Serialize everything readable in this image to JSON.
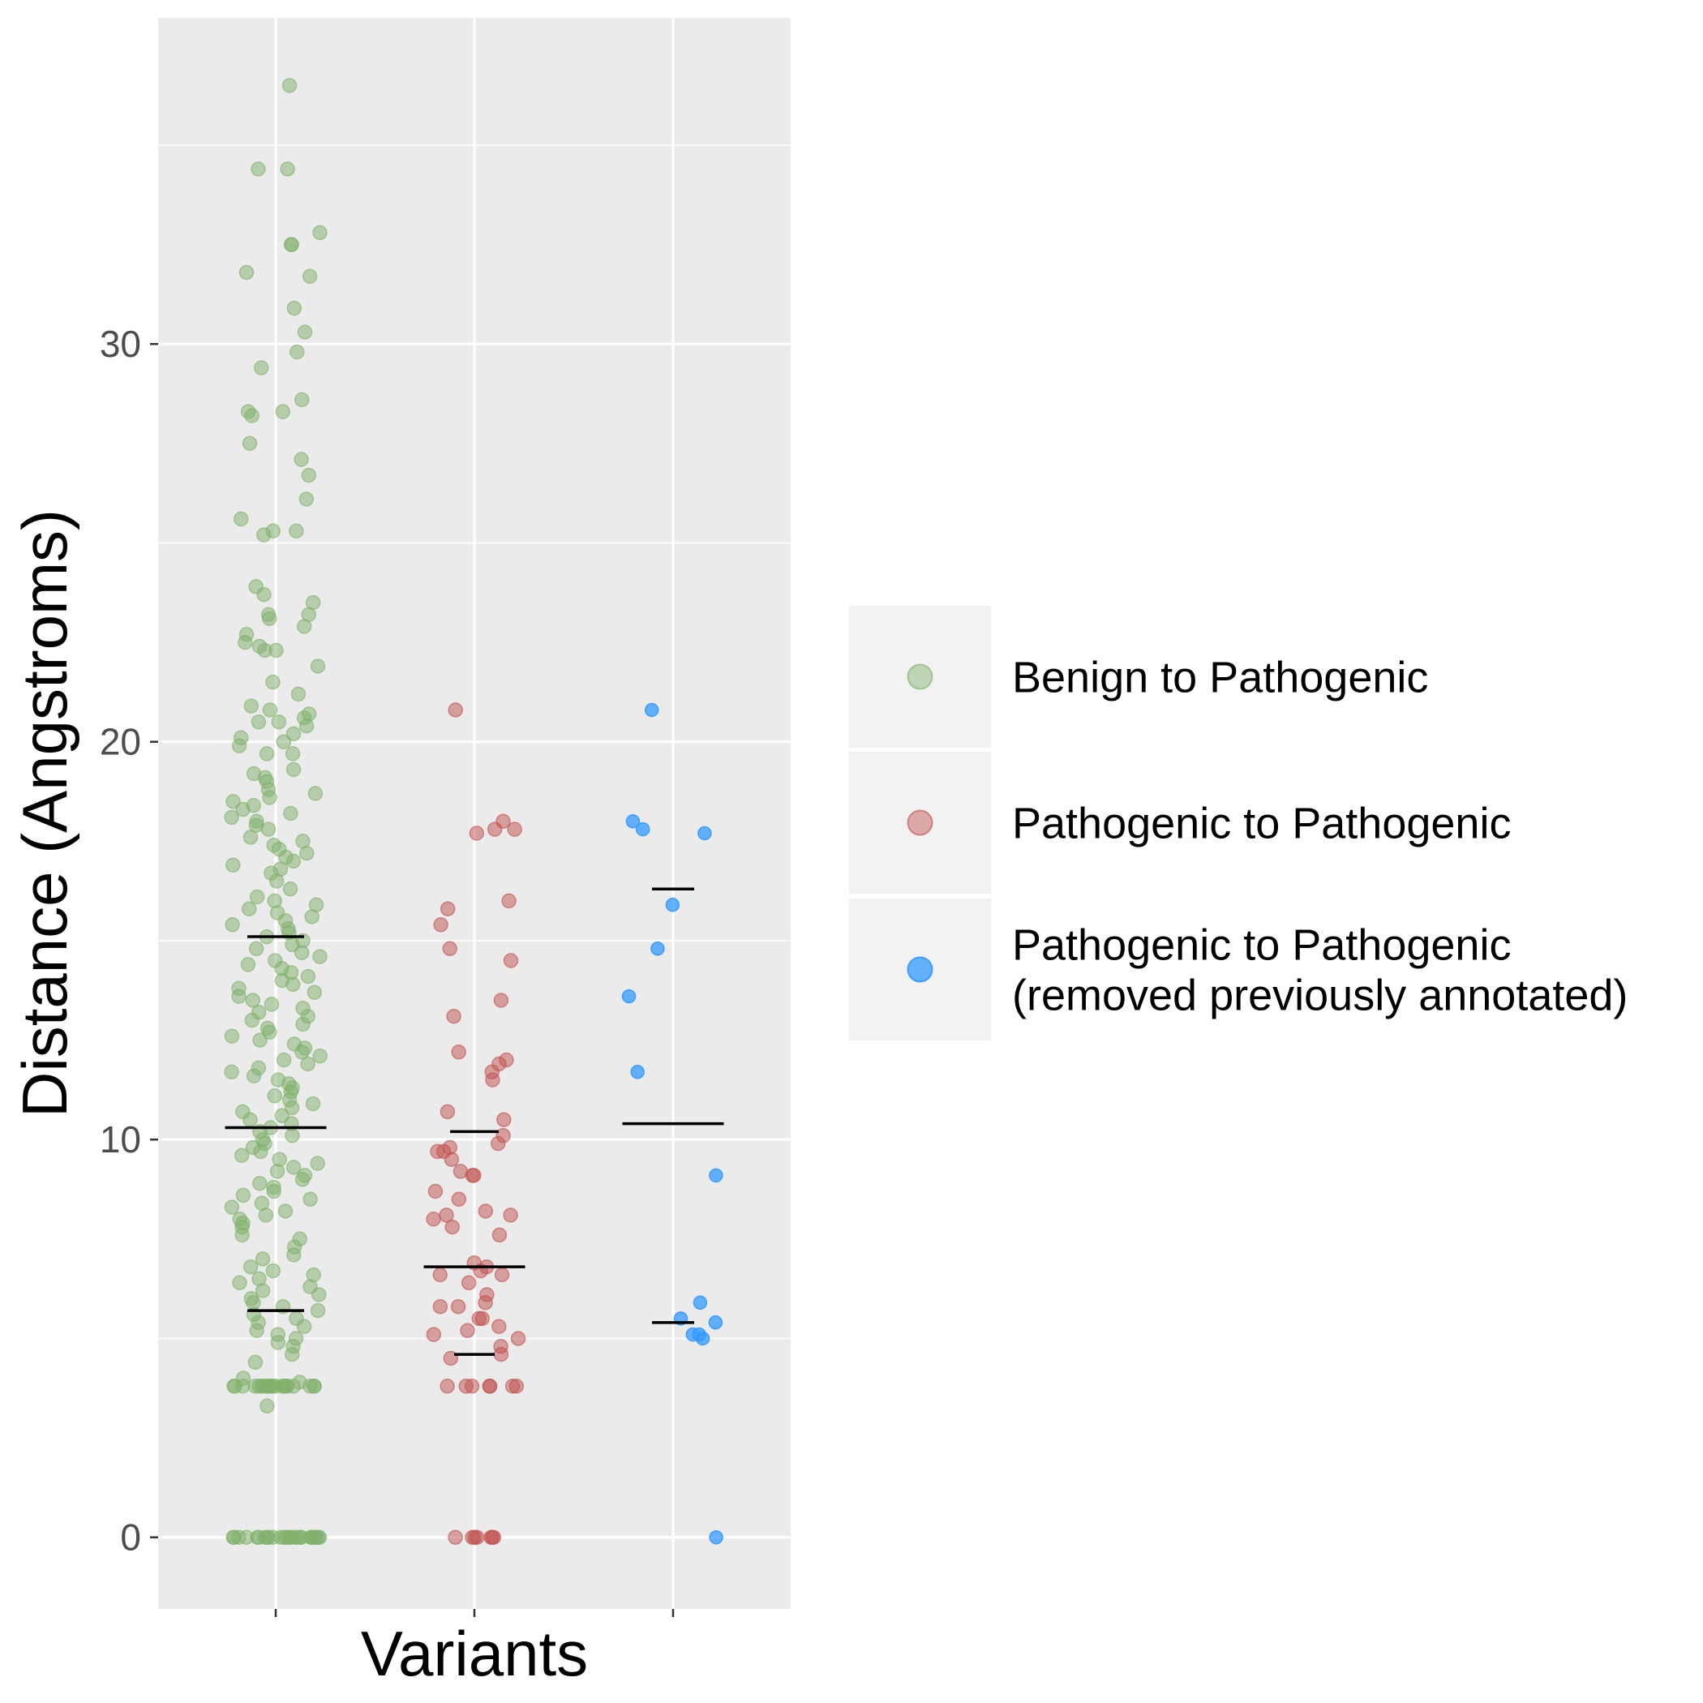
{
  "chart_data": {
    "type": "scatter",
    "title": "",
    "xlabel": "Variants",
    "ylabel": "Distance (Angstroms)",
    "ylim": [
      -1.8,
      38.2
    ],
    "yticks": [
      0,
      10,
      20,
      30
    ],
    "grid": true,
    "legend_position": "right",
    "series": [
      {
        "name": "Benign to Pathogenic",
        "color": "#7fb069",
        "quantiles": [
          5.7,
          10.3,
          15.1
        ],
        "y": [
          36.5,
          34.4,
          34.4,
          32.8,
          32.5,
          32.5,
          31.8,
          31.7,
          30.9,
          30.3,
          29.8,
          29.4,
          28.6,
          28.3,
          28.3,
          28.2,
          27.5,
          27.1,
          26.7,
          26.1,
          25.6,
          25.3,
          25.3,
          25.2,
          23.9,
          23.7,
          23.5,
          23.2,
          23.2,
          23.1,
          22.9,
          22.7,
          22.5,
          22.4,
          22.3,
          22.3,
          21.9,
          21.5,
          21.2,
          20.9,
          20.8,
          20.7,
          20.6,
          20.5,
          20.5,
          20.4,
          20.2,
          20.1,
          20.0,
          19.9,
          19.7,
          19.7,
          19.3,
          19.2,
          19.1,
          19.0,
          18.8,
          18.7,
          18.6,
          18.5,
          18.4,
          18.3,
          18.2,
          18.1,
          18.0,
          17.9,
          17.8,
          17.6,
          17.5,
          17.4,
          17.3,
          17.2,
          17.1,
          17.0,
          16.9,
          16.8,
          16.7,
          16.5,
          16.3,
          16.1,
          16.0,
          15.9,
          15.8,
          15.7,
          15.6,
          15.5,
          15.4,
          15.3,
          15.2,
          15.1,
          15.0,
          14.9,
          14.8,
          14.7,
          14.6,
          14.5,
          14.4,
          14.3,
          14.2,
          14.1,
          14.0,
          13.9,
          13.8,
          13.7,
          13.6,
          13.5,
          13.4,
          13.3,
          13.2,
          13.1,
          13.0,
          12.9,
          12.8,
          12.7,
          12.6,
          12.5,
          12.4,
          12.3,
          12.2,
          12.1,
          12.0,
          11.9,
          11.8,
          11.7,
          11.6,
          11.5,
          11.4,
          11.3,
          11.2,
          11.1,
          11.0,
          10.9,
          10.8,
          10.7,
          10.6,
          10.5,
          10.4,
          10.3,
          10.2,
          10.1,
          10.0,
          9.9,
          9.8,
          9.7,
          9.6,
          9.5,
          9.4,
          9.3,
          9.2,
          9.1,
          9.0,
          8.9,
          8.8,
          8.7,
          8.6,
          8.5,
          8.4,
          8.3,
          8.2,
          8.1,
          8.0,
          7.9,
          7.8,
          7.6,
          7.5,
          7.3,
          7.1,
          7.0,
          6.8,
          6.7,
          6.6,
          6.5,
          6.4,
          6.3,
          6.2,
          6.1,
          6.0,
          5.9,
          5.8,
          5.7,
          5.6,
          5.5,
          5.4,
          5.3,
          5.2,
          5.1,
          5.0,
          4.9,
          4.8,
          4.6,
          4.4,
          4.0,
          3.9,
          3.8,
          3.8,
          3.8,
          3.8,
          3.8,
          3.8,
          3.8,
          3.8,
          3.8,
          3.8,
          3.8,
          3.8,
          3.8,
          3.8,
          3.8,
          3.8,
          3.8,
          3.8,
          3.8,
          3.8,
          3.3,
          0,
          0,
          0,
          0,
          0,
          0,
          0,
          0,
          0,
          0,
          0,
          0,
          0,
          0,
          0,
          0,
          0,
          0,
          0,
          0,
          0,
          0,
          0,
          0,
          0,
          0
        ]
      },
      {
        "name": "Pathogenic to Pathogenic",
        "color": "#c0504d",
        "quantiles": [
          4.6,
          6.8,
          10.2
        ],
        "y": [
          20.8,
          18.0,
          17.8,
          17.8,
          17.7,
          16.0,
          15.8,
          15.4,
          14.8,
          14.5,
          13.5,
          13.1,
          12.2,
          12.0,
          11.9,
          11.7,
          11.5,
          10.7,
          10.5,
          10.1,
          9.9,
          9.8,
          9.7,
          9.7,
          9.5,
          9.2,
          9.1,
          9.1,
          8.7,
          8.5,
          8.2,
          8.1,
          8.1,
          8.0,
          7.8,
          7.6,
          6.9,
          6.8,
          6.7,
          6.6,
          6.6,
          6.4,
          6.1,
          5.9,
          5.8,
          5.8,
          5.5,
          5.5,
          5.3,
          5.2,
          5.1,
          5.0,
          4.8,
          4.6,
          4.5,
          3.8,
          3.8,
          3.8,
          3.8,
          3.8,
          3.8,
          3.8,
          0,
          0,
          0,
          0,
          0,
          0,
          0
        ]
      },
      {
        "name": "Pathogenic to Pathogenic\n(removed previously annotated)",
        "color": "#3399ff",
        "quantiles": [
          5.4,
          10.4,
          16.3
        ],
        "y": [
          20.8,
          18.0,
          17.8,
          17.7,
          15.9,
          14.8,
          13.6,
          11.7,
          9.1,
          5.9,
          5.5,
          5.4,
          5.1,
          5.1,
          5.0,
          0
        ]
      }
    ]
  }
}
